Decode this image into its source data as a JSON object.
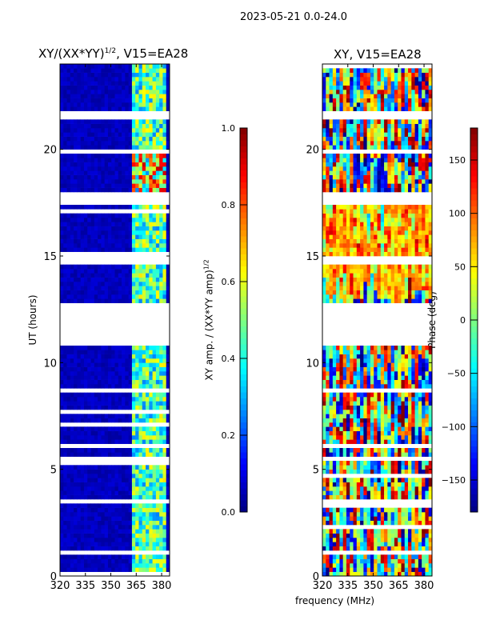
{
  "chart_data": {
    "type": "heatmap",
    "suptitle": "2023-05-21 0.0-24.0",
    "xlabel": "frequency (MHz)",
    "panels": [
      {
        "title": "XY/(XX*YY)^1/2, V15=EA28",
        "title_main": "XY/(XX*YY)",
        "title_sup": "1/2",
        "title_tail": ", V15=EA28",
        "ylabel": "UT (hours)",
        "xlim": [
          320,
          384.7
        ],
        "ylim": [
          0,
          24
        ],
        "xticks": [
          "320",
          "335",
          "350",
          "365",
          "380"
        ],
        "yticks": [
          "0",
          "5",
          "10",
          "15",
          "20"
        ],
        "quantity": "normalized amplitude",
        "colorbar": {
          "label": "XY amp. / (XX*YY amp)^1/2",
          "label_main": "XY amp. / (XX*YY amp)",
          "label_sup": "1/2",
          "range": [
            0,
            1
          ],
          "ticks": [
            "0.0",
            "0.2",
            "0.4",
            "0.6",
            "0.8",
            "1.0"
          ]
        },
        "typical_value_outside_band": 0.05,
        "bright_band_MHz": [
          362,
          382
        ],
        "typical_value_in_band": 0.45
      },
      {
        "title": "XY, V15=EA28",
        "xlim": [
          320,
          384.7
        ],
        "ylim": [
          0,
          24
        ],
        "xticks": [
          "320",
          "335",
          "350",
          "365",
          "380"
        ],
        "yticks": [
          "0",
          "5",
          "10",
          "15",
          "20"
        ],
        "quantity": "phase",
        "colorbar": {
          "label": "Phase (deg)",
          "range": [
            -180,
            180
          ],
          "ticks": [
            "−150",
            "−100",
            "−50",
            "0",
            "50",
            "100",
            "150"
          ],
          "tick_values": [
            -150,
            -100,
            -50,
            0,
            50,
            100,
            150
          ]
        }
      }
    ],
    "flagged_UT_ranges_hours": [
      [
        10.9,
        12.7
      ],
      [
        14.6,
        15.0
      ],
      [
        17.5,
        17.9
      ],
      [
        21.5,
        21.7
      ],
      [
        6.1,
        6.3
      ],
      [
        5.5,
        5.6
      ],
      [
        3.4,
        3.5
      ],
      [
        1.0,
        1.2
      ],
      [
        19.9,
        20.0
      ]
    ]
  }
}
